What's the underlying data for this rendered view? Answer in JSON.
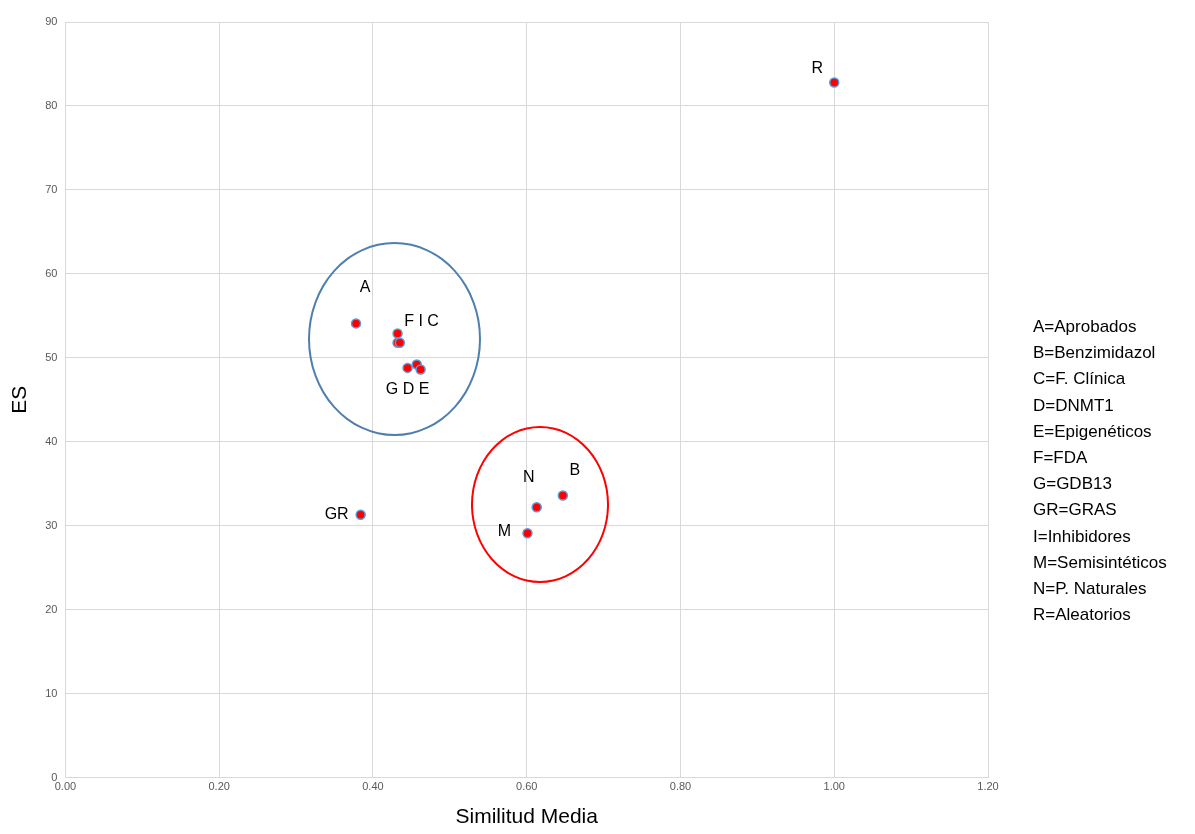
{
  "chart_data": {
    "type": "scatter",
    "xlabel": "Similitud Media",
    "ylabel": "ES",
    "x": [
      0.378,
      0.432,
      0.432,
      0.435,
      0.445,
      0.457,
      0.462,
      0.384,
      0.613,
      0.647,
      0.601,
      1.0
    ],
    "series": [
      {
        "color": "#ff0000",
        "values": [
          54.1,
          52.9,
          51.8,
          51.8,
          48.8,
          49.2,
          48.6,
          31.3,
          32.2,
          33.6,
          29.1,
          82.8
        ]
      }
    ],
    "xlim": [
      0,
      1.2
    ],
    "ylim": [
      0,
      90
    ],
    "xticks": [
      {
        "value": 0,
        "label": "0.00"
      },
      {
        "value": 0.2,
        "label": "0.20"
      },
      {
        "value": 0.4,
        "label": "0.40"
      },
      {
        "value": 0.6,
        "label": "0.60"
      },
      {
        "value": 0.8,
        "label": "0.80"
      },
      {
        "value": 1.0,
        "label": "1.00"
      },
      {
        "value": 1.2,
        "label": "1.20"
      }
    ],
    "yticks": [
      0,
      10,
      20,
      30,
      40,
      50,
      60,
      70,
      80,
      90
    ],
    "grid": true,
    "marker": "circle",
    "legend": false,
    "annotations": [
      {
        "text": "A",
        "x": 0.378,
        "y": 54.1
      },
      {
        "text": "F I C",
        "x": 0.432,
        "y": 52.9
      },
      {
        "text": "G D E",
        "x": 0.445,
        "y": 48.8
      },
      {
        "text": "GR",
        "x": 0.384,
        "y": 31.3
      },
      {
        "text": "N",
        "x": 0.613,
        "y": 32.2
      },
      {
        "text": "B",
        "x": 0.647,
        "y": 33.6
      },
      {
        "text": "M",
        "x": 0.601,
        "y": 29.1
      },
      {
        "text": "R",
        "x": 1.0,
        "y": 82.8
      },
      "A=Aprobados",
      "B=Benzimidazol",
      "C=F. Clínica",
      "D=DNMT1",
      "E=Epigenéticos",
      "F=FDA",
      "G=GDB13",
      "GR=GRAS",
      "I=Inhibidores",
      "M=Semisintéticos",
      "N=P. Naturales",
      "R=Aleatorios"
    ]
  }
}
